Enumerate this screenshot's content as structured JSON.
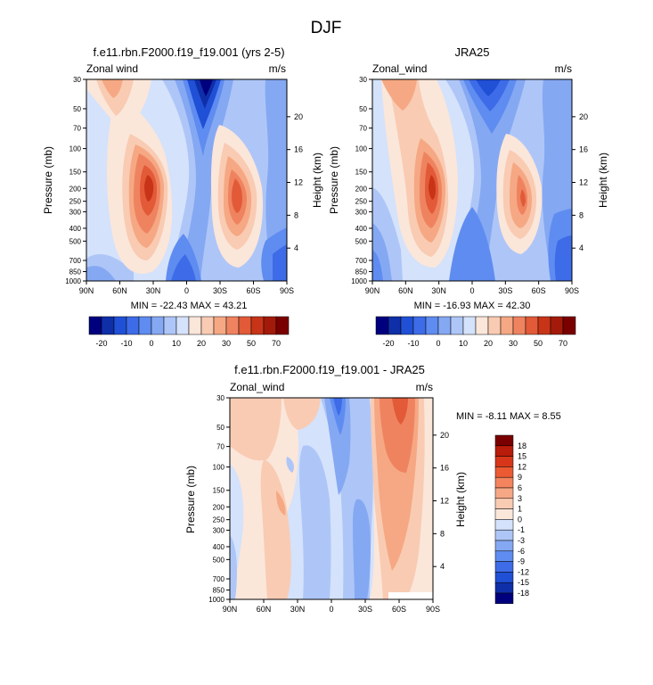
{
  "figure": {
    "title": "DJF"
  },
  "panels": [
    {
      "id": "model",
      "title": "f.e11.rbn.F2000.f19_f19.001 (yrs 2-5)",
      "left_label": "Zonal wind",
      "right_label": "m/s",
      "stats": "MIN = -22.43  MAX = 43.21"
    },
    {
      "id": "obs",
      "title": "JRA25",
      "left_label": "Zonal_wind",
      "right_label": "m/s",
      "stats": "MIN = -16.93  MAX = 42.30"
    },
    {
      "id": "diff",
      "title": "f.e11.rbn.F2000.f19_f19.001 - JRA25",
      "left_label": "Zonal_wind",
      "right_label": "m/s",
      "stats": "MIN =  -8.11  MAX =   8.55"
    }
  ],
  "axes": {
    "ylabel": "Pressure (mb)",
    "y2label": "Height (km)",
    "x_ticks": [
      "90N",
      "60N",
      "30N",
      "0",
      "30S",
      "60S",
      "90S"
    ],
    "pressure_ticks": [
      "30",
      "50",
      "70",
      "100",
      "150",
      "200",
      "250",
      "300",
      "400",
      "500",
      "700",
      "850",
      "1000"
    ],
    "height_ticks": [
      "20",
      "16",
      "12",
      "8",
      "4"
    ]
  },
  "colorbars": {
    "main": {
      "labels": [
        "-20",
        "-10",
        "0",
        "10",
        "20",
        "30",
        "50",
        "70"
      ],
      "colors": [
        "#00007f",
        "#0f2fa8",
        "#2050d6",
        "#3e6ce8",
        "#5f8cf0",
        "#85a8f3",
        "#aec6f7",
        "#d4e2fb",
        "#fbe6da",
        "#f9cbb3",
        "#f5a883",
        "#ef8360",
        "#e25a38",
        "#c83418",
        "#a41a0a",
        "#7a0000"
      ]
    },
    "diff": {
      "labels": [
        "18",
        "15",
        "12",
        "9",
        "6",
        "3",
        "1",
        "0",
        "-1",
        "-3",
        "-6",
        "-9",
        "-12",
        "-15",
        "-18"
      ],
      "colors": [
        "#7a0000",
        "#b81c0a",
        "#d8361a",
        "#ec5a34",
        "#f3845e",
        "#f6a786",
        "#f9cbb3",
        "#fbe6da",
        "#d4e2fb",
        "#aec6f7",
        "#85a8f3",
        "#5f8cf0",
        "#3e6ce8",
        "#2050d6",
        "#0f2fa8",
        "#00007f"
      ]
    }
  },
  "chart_data": [
    {
      "type": "heatmap",
      "title": "f.e11.rbn.F2000.f19_f19.001 (yrs 2-5)",
      "field": "Zonal wind",
      "units": "m/s",
      "xlabel": "",
      "ylabel": "Pressure (mb)",
      "y2label": "Height (km)",
      "x_range": [
        "90N",
        "90S"
      ],
      "y_range_mb": [
        1000,
        30
      ],
      "y_scale": "log",
      "min": -22.43,
      "max": 43.21,
      "features": [
        {
          "lat": 28,
          "p": 200,
          "value": 43
        },
        {
          "lat": -48,
          "p": 250,
          "value": 36
        },
        {
          "lat": -8,
          "p": 30,
          "value": -22
        },
        {
          "lat": 80,
          "p": 40,
          "value": 18
        }
      ]
    },
    {
      "type": "heatmap",
      "title": "JRA25",
      "field": "Zonal_wind",
      "units": "m/s",
      "xlabel": "",
      "ylabel": "Pressure (mb)",
      "y2label": "Height (km)",
      "x_range": [
        "90N",
        "90S"
      ],
      "y_range_mb": [
        1000,
        30
      ],
      "y_scale": "log",
      "min": -16.93,
      "max": 42.3,
      "features": [
        {
          "lat": 30,
          "p": 200,
          "value": 42
        },
        {
          "lat": -50,
          "p": 250,
          "value": 30
        },
        {
          "lat": -8,
          "p": 30,
          "value": -17
        },
        {
          "lat": 72,
          "p": 40,
          "value": 20
        }
      ]
    },
    {
      "type": "heatmap",
      "title": "f.e11.rbn.F2000.f19_f19.001 - JRA25",
      "field": "Zonal_wind",
      "units": "m/s",
      "xlabel": "",
      "ylabel": "Pressure (mb)",
      "y2label": "Height (km)",
      "x_range": [
        "90N",
        "90S"
      ],
      "y_range_mb": [
        1000,
        30
      ],
      "y_scale": "log",
      "min": -8.11,
      "max": 8.55,
      "features": [
        {
          "lat": -56,
          "p": 60,
          "value": 8.5
        },
        {
          "lat": 5,
          "p": 60,
          "value": -8
        },
        {
          "lat": 40,
          "p": 200,
          "value": 4
        },
        {
          "lat": 62,
          "p": 60,
          "value": 3
        }
      ]
    }
  ]
}
